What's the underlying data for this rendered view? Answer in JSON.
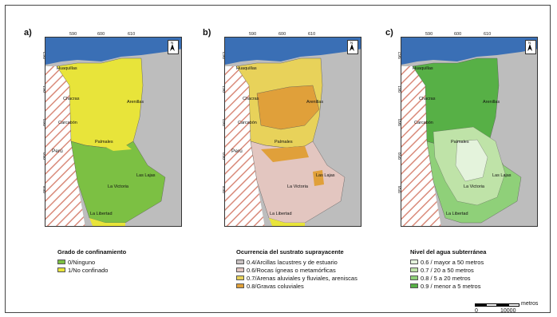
{
  "panels": [
    {
      "letter": "a)",
      "x_ticks": [
        "590",
        "600",
        "610"
      ],
      "y_ticks": [
        "962",
        "961",
        "960",
        "959",
        "958"
      ],
      "north_label": "N",
      "legend": {
        "title": "Grado de confinamiento",
        "items": [
          {
            "label": "0/Ninguno",
            "color": "#7cc043"
          },
          {
            "label": "1/No confinado",
            "color": "#e8e43a"
          }
        ]
      }
    },
    {
      "letter": "b)",
      "x_ticks": [
        "590",
        "600",
        "610"
      ],
      "y_ticks": [
        "962",
        "961",
        "960",
        "959",
        "958"
      ],
      "north_label": "N",
      "legend": {
        "title": "Ocurrencia del sustrato suprayacente",
        "items": [
          {
            "label": "0.4/Arcillas lacustres y de estuario",
            "color": "#c9c2c2"
          },
          {
            "label": "0.6/Rocas ígneas o metamórficas",
            "color": "#e3c6c0"
          },
          {
            "label": "0.7/Arenas aluviales y fluviales, areniscas",
            "color": "#e8d25a"
          },
          {
            "label": "0.8/Gravas coluviales",
            "color": "#e0a03a"
          }
        ]
      }
    },
    {
      "letter": "c)",
      "x_ticks": [
        "590",
        "600",
        "610"
      ],
      "y_ticks": [
        "962",
        "961",
        "960",
        "959",
        "958"
      ],
      "north_label": "N",
      "legend": {
        "title": "Nivel del agua subterránea",
        "items": [
          {
            "label": "0.6 / mayor a 50 metros",
            "color": "#e4f3dc"
          },
          {
            "label": "0.7 / 20 a 50 metros",
            "color": "#bfe3a8"
          },
          {
            "label": "0.8 / 5 a 20 metros",
            "color": "#8fd079"
          },
          {
            "label": "0.9 / menor a 5 metros",
            "color": "#57b046"
          }
        ]
      }
    }
  ],
  "towns": [
    "Huaquillas",
    "Chacras",
    "Arenillas",
    "Carcabón",
    "Palmales",
    "Las Lajas",
    "La Victoria",
    "La Libertad"
  ],
  "country_label": "Perú",
  "scale": {
    "unit": "metros",
    "start": "0",
    "end": "10000"
  },
  "colors": {
    "sea": "#3a6fb5",
    "relief": "#bdbdbd",
    "hatch": "#d98a7a"
  }
}
